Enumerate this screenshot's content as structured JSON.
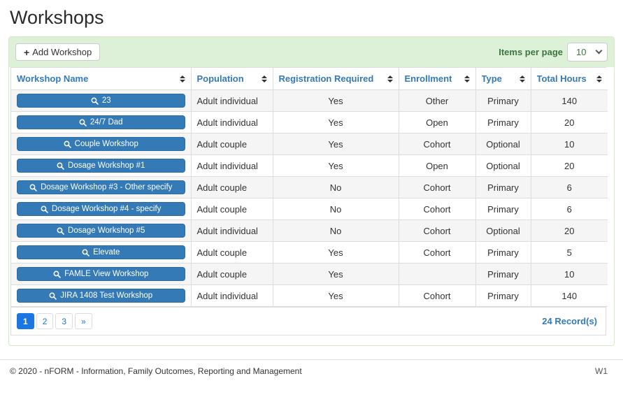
{
  "page": {
    "title": "Workshops"
  },
  "toolbar": {
    "add_label": "Add Workshop",
    "items_per_page_label": "Items per page",
    "items_per_page_value": "10"
  },
  "table": {
    "columns": [
      {
        "key": "workshop_name",
        "label": "Workshop Name"
      },
      {
        "key": "population",
        "label": "Population"
      },
      {
        "key": "registration_required",
        "label": "Registration Required"
      },
      {
        "key": "enrollment",
        "label": "Enrollment"
      },
      {
        "key": "type",
        "label": "Type"
      },
      {
        "key": "total_hours",
        "label": "Total Hours"
      }
    ],
    "rows": [
      {
        "workshop_name": "23",
        "population": "Adult individual",
        "registration_required": "Yes",
        "enrollment": "Other",
        "type": "Primary",
        "total_hours": "140"
      },
      {
        "workshop_name": "24/7 Dad",
        "population": "Adult individual",
        "registration_required": "Yes",
        "enrollment": "Open",
        "type": "Primary",
        "total_hours": "20"
      },
      {
        "workshop_name": "Couple Workshop",
        "population": "Adult couple",
        "registration_required": "Yes",
        "enrollment": "Cohort",
        "type": "Optional",
        "total_hours": "10"
      },
      {
        "workshop_name": "Dosage Workshop #1",
        "population": "Adult individual",
        "registration_required": "Yes",
        "enrollment": "Open",
        "type": "Optional",
        "total_hours": "20"
      },
      {
        "workshop_name": "Dosage Workshop #3 - Other specify",
        "population": "Adult couple",
        "registration_required": "No",
        "enrollment": "Cohort",
        "type": "Primary",
        "total_hours": "6"
      },
      {
        "workshop_name": "Dosage Workshop #4 - specify",
        "population": "Adult couple",
        "registration_required": "No",
        "enrollment": "Cohort",
        "type": "Primary",
        "total_hours": "6"
      },
      {
        "workshop_name": "Dosage Workshop #5",
        "population": "Adult individual",
        "registration_required": "No",
        "enrollment": "Cohort",
        "type": "Optional",
        "total_hours": "20"
      },
      {
        "workshop_name": "Elevate",
        "population": "Adult couple",
        "registration_required": "Yes",
        "enrollment": "Cohort",
        "type": "Primary",
        "total_hours": "5"
      },
      {
        "workshop_name": "FAMLE View Workshop",
        "population": "Adult couple",
        "registration_required": "Yes",
        "enrollment": "",
        "type": "Primary",
        "total_hours": "10"
      },
      {
        "workshop_name": "JIRA 1408 Test Workshop",
        "population": "Adult individual",
        "registration_required": "Yes",
        "enrollment": "Cohort",
        "type": "Primary",
        "total_hours": "140"
      }
    ]
  },
  "pagination": {
    "pages": [
      "1",
      "2",
      "3",
      "»"
    ],
    "active_page": "1",
    "records": "24 Record(s)"
  },
  "footer": {
    "copyright": "© 2020 - nFORM - Information, Family Outcomes, Reporting and Management",
    "site_code": "W1"
  },
  "colors": {
    "primary_blue": "#337ab7",
    "pagination_active_blue": "#1b75e3",
    "panel_heading_green": "#ddf0d8",
    "panel_border_green": "#d6e9c6",
    "header_text_blue": "#337ab7",
    "items_per_page_text_green": "#3c763d"
  },
  "icons": {
    "add_button": "plus-icon",
    "workshop_button": "search-icon",
    "column_header": "sort-icon",
    "items_per_page": "chevron-down-icon"
  }
}
